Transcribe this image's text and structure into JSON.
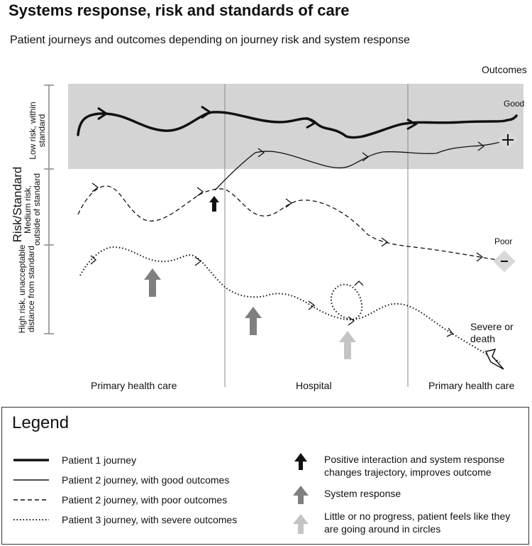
{
  "title": "Systems response, risk and standards of care",
  "subtitle": "Patient journeys and outcomes depending on journey risk and system response",
  "y_axis_title": "Risk/Standard",
  "bands": {
    "low": "Low risk, within standard",
    "medium": "Medium risk, outside of standard",
    "high": "High risk, unacceptable distance from standard"
  },
  "outcomes": {
    "heading": "Outcomes",
    "good": "Good",
    "poor": "Poor",
    "severe": "Severe or death"
  },
  "settings": [
    "Primary health care",
    "Hospital",
    "Primary health care"
  ],
  "legend": {
    "title": "Legend",
    "lines": [
      {
        "label": "Patient 1 journey",
        "style": "thick"
      },
      {
        "label": "Patient 2 journey, with good outcomes",
        "style": "solid"
      },
      {
        "label": "Patient 2 journey, with poor outcomes",
        "style": "dashed"
      },
      {
        "label": "Patient 3 journey, with severe outcomes",
        "style": "dotted"
      }
    ],
    "arrows": [
      {
        "label": "Positive interaction and system response changes trajectory, improves outcome",
        "color": "#111111"
      },
      {
        "label": "System response",
        "color": "#7f7f7f"
      },
      {
        "label": "Little or no progress, patient feels like they are going around in circles",
        "color": "#c4c4c4"
      }
    ]
  },
  "colors": {
    "band_fill": "#d4d4d4",
    "black_arrow": "#111111",
    "grey_arrow": "#7f7f7f",
    "light_arrow": "#c4c4c4"
  }
}
